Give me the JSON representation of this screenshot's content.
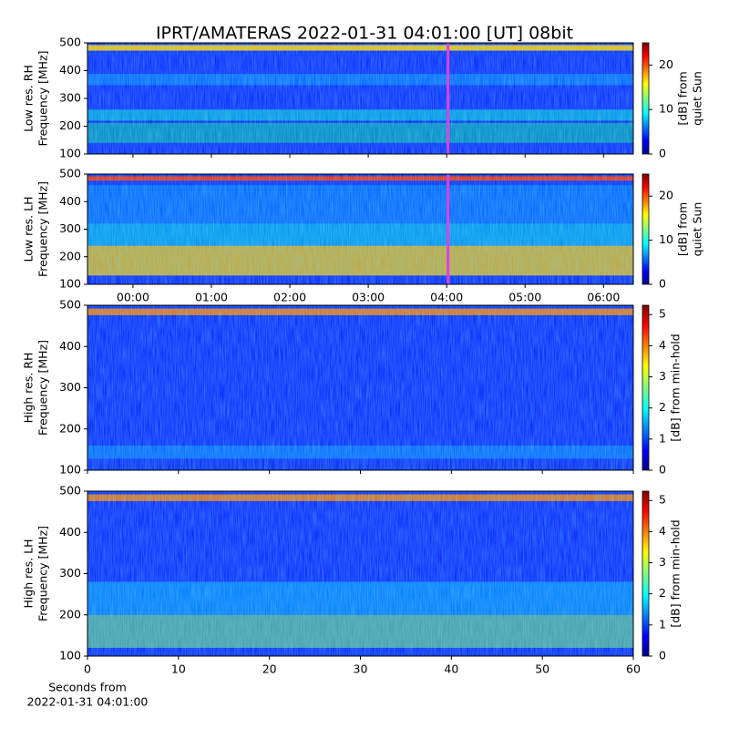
{
  "title": "IPRT/AMATERAS 2022-01-31 04:01:00 [UT]   08bit",
  "chart_data": [
    {
      "type": "spectrogram",
      "ylabel": [
        "Low res. RH",
        "Frequency [MHz]"
      ],
      "ylim": [
        100,
        500
      ],
      "yticks": [
        100,
        200,
        300,
        400,
        500
      ],
      "xlim": [
        -0.58,
        6.38
      ],
      "xticks": [
        {
          "value": 0,
          "label": "00:00"
        },
        {
          "value": 1,
          "label": "01:00"
        },
        {
          "value": 2,
          "label": "02:00"
        },
        {
          "value": 3,
          "label": "03:00"
        },
        {
          "value": 4,
          "label": "04:00"
        },
        {
          "value": 5,
          "label": "05:00"
        },
        {
          "value": 6,
          "label": "06:00"
        }
      ],
      "show_xticklabels": false,
      "marker_x": 4.017,
      "marker_color": "#e040e0",
      "colorbar": {
        "label": [
          "[dB] from",
          "quiet Sun"
        ],
        "lim": [
          0,
          25
        ],
        "ticks": [
          0,
          10,
          20
        ]
      }
    },
    {
      "type": "spectrogram",
      "ylabel": [
        "Low res. LH",
        "Frequency [MHz]"
      ],
      "ylim": [
        100,
        500
      ],
      "yticks": [
        100,
        200,
        300,
        400,
        500
      ],
      "xlim": [
        -0.58,
        6.38
      ],
      "xticks": [
        {
          "value": 0,
          "label": "00:00"
        },
        {
          "value": 1,
          "label": "01:00"
        },
        {
          "value": 2,
          "label": "02:00"
        },
        {
          "value": 3,
          "label": "03:00"
        },
        {
          "value": 4,
          "label": "04:00"
        },
        {
          "value": 5,
          "label": "05:00"
        },
        {
          "value": 6,
          "label": "06:00"
        }
      ],
      "show_xticklabels": true,
      "marker_x": 4.017,
      "marker_color": "#e040e0",
      "colorbar": {
        "label": [
          "[dB] from",
          "quiet Sun"
        ],
        "lim": [
          0,
          25
        ],
        "ticks": [
          0,
          10,
          20
        ]
      }
    },
    {
      "type": "spectrogram",
      "ylabel": [
        "High res. RH",
        "Frequency [MHz]"
      ],
      "ylim": [
        100,
        500
      ],
      "yticks": [
        100,
        200,
        300,
        400,
        500
      ],
      "xlim": [
        0,
        60
      ],
      "xticks": [
        0,
        10,
        20,
        30,
        40,
        50,
        60
      ],
      "show_xticklabels": false,
      "colorbar": {
        "label": [
          "[dB] from min-hold"
        ],
        "lim": [
          0,
          5.3
        ],
        "ticks": [
          0,
          1,
          2,
          3,
          4,
          5
        ]
      }
    },
    {
      "type": "spectrogram",
      "ylabel": [
        "High res. LH",
        "Frequency [MHz]"
      ],
      "ylim": [
        100,
        500
      ],
      "yticks": [
        100,
        200,
        300,
        400,
        500
      ],
      "xlim": [
        0,
        60
      ],
      "xticks": [
        0,
        10,
        20,
        30,
        40,
        50,
        60
      ],
      "show_xticklabels": true,
      "xlabel": [
        "Seconds from",
        "2022-01-31 04:01:00"
      ],
      "colorbar": {
        "label": [
          "[dB] from min-hold"
        ],
        "lim": [
          0,
          5.3
        ],
        "ticks": [
          0,
          1,
          2,
          3,
          4,
          5
        ]
      }
    }
  ]
}
